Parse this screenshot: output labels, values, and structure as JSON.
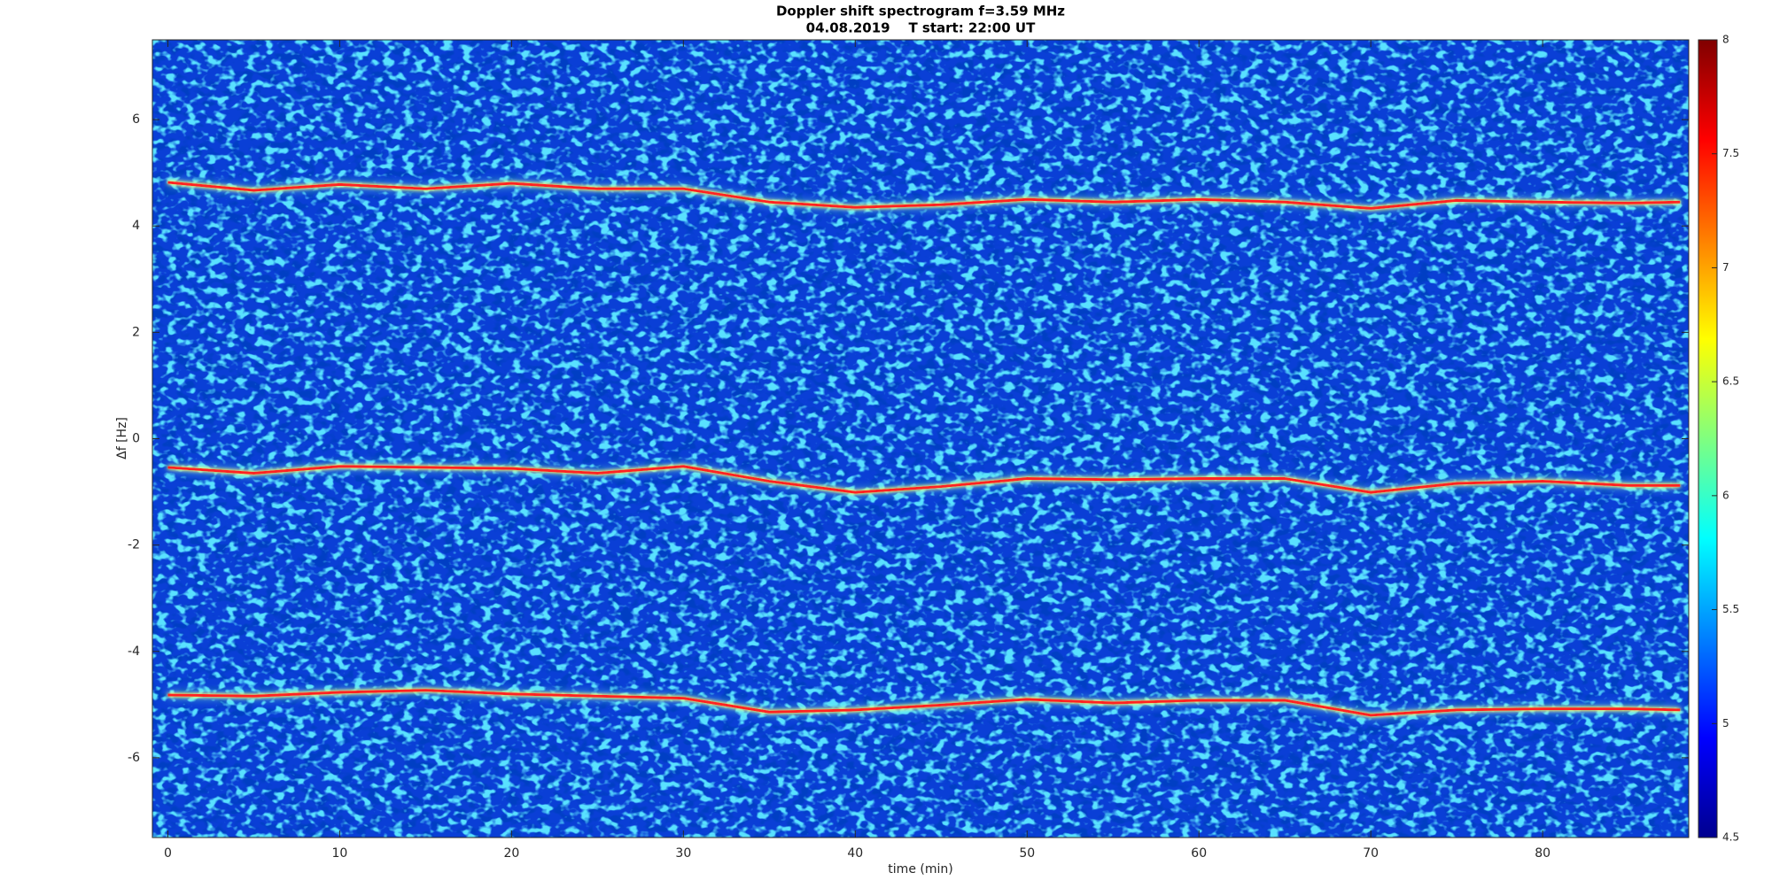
{
  "chart_data": {
    "type": "line",
    "title": "Doppler shift spectrogram f=3.59 MHz",
    "subtitle": "04.08.2019    T start: 22:00 UT",
    "x_label": "time (min)",
    "y_label": "Δf [Hz]",
    "x": [
      0,
      5,
      10,
      15,
      20,
      25,
      30,
      35,
      40,
      45,
      50,
      55,
      60,
      65,
      70,
      75,
      80,
      85,
      88
    ],
    "series": [
      {
        "color": "#ff2020",
        "values": [
          4.82,
          4.67,
          4.78,
          4.7,
          4.8,
          4.7,
          4.7,
          4.45,
          4.35,
          4.4,
          4.5,
          4.45,
          4.5,
          4.45,
          4.33,
          4.48,
          4.45,
          4.43,
          4.45
        ]
      },
      {
        "color": "#ff2020",
        "values": [
          -0.54,
          -0.65,
          -0.52,
          -0.54,
          -0.56,
          -0.65,
          -0.52,
          -0.8,
          -1.01,
          -0.9,
          -0.75,
          -0.77,
          -0.75,
          -0.75,
          -1.01,
          -0.84,
          -0.8,
          -0.88,
          -0.88
        ]
      },
      {
        "color": "#ff2020",
        "values": [
          -4.82,
          -4.84,
          -4.77,
          -4.73,
          -4.8,
          -4.84,
          -4.88,
          -5.14,
          -5.1,
          -5.01,
          -4.9,
          -4.97,
          -4.92,
          -4.92,
          -5.2,
          -5.1,
          -5.08,
          -5.08,
          -5.1
        ]
      }
    ],
    "xlim": [
      -0.9,
      88.5
    ],
    "xticks": [
      0,
      10,
      20,
      30,
      40,
      50,
      60,
      70,
      80
    ],
    "ylim": [
      -7.5,
      7.5
    ],
    "yticks": [
      -6,
      -4,
      -2,
      0,
      2,
      4,
      6
    ],
    "grid": false,
    "colorbar": {
      "colormap": "jet",
      "lim": [
        4.5,
        8
      ],
      "ticks": [
        4.5,
        5,
        5.5,
        6,
        6.5,
        7,
        7.5,
        8
      ]
    }
  }
}
